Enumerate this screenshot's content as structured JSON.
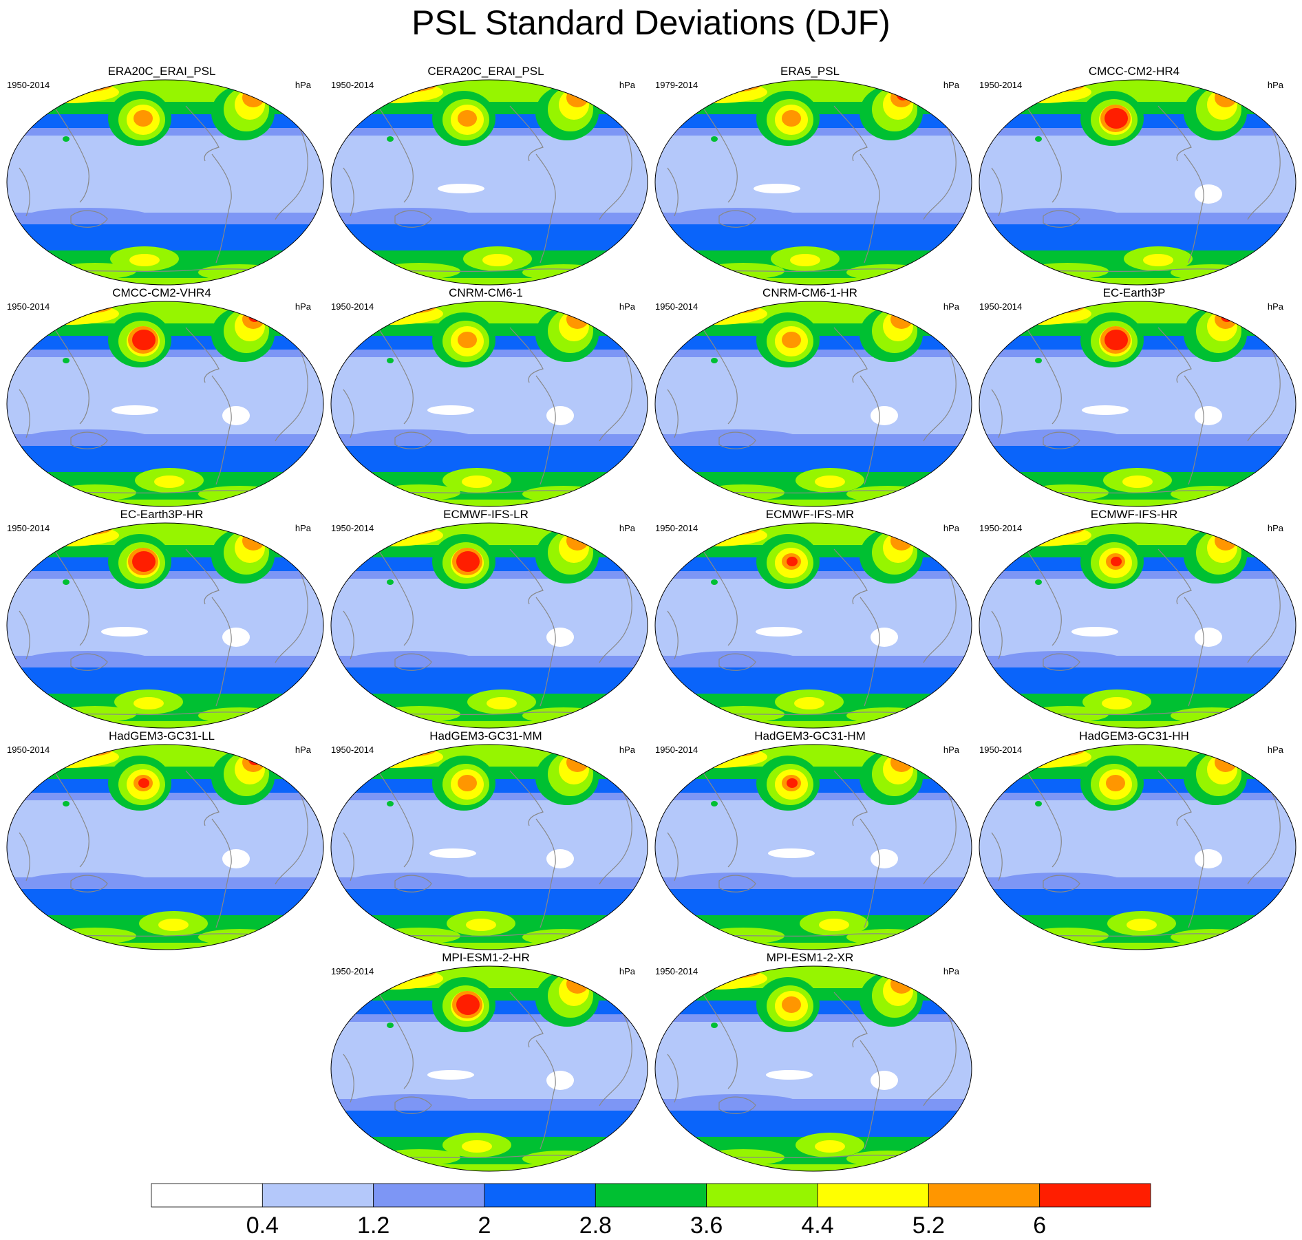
{
  "figure": {
    "title": "PSL Standard Deviations (DJF)"
  },
  "panels": [
    {
      "name": "ERA20C_ERAI_PSL",
      "period": "1950-2014",
      "units": "hPa"
    },
    {
      "name": "CERA20C_ERAI_PSL",
      "period": "1950-2014",
      "units": "hPa"
    },
    {
      "name": "ERA5_PSL",
      "period": "1979-2014",
      "units": "hPa"
    },
    {
      "name": "CMCC-CM2-HR4",
      "period": "1950-2014",
      "units": "hPa"
    },
    {
      "name": "CMCC-CM2-VHR4",
      "period": "1950-2014",
      "units": "hPa"
    },
    {
      "name": "CNRM-CM6-1",
      "period": "1950-2014",
      "units": "hPa"
    },
    {
      "name": "CNRM-CM6-1-HR",
      "period": "1950-2014",
      "units": "hPa"
    },
    {
      "name": "EC-Earth3P",
      "period": "1950-2014",
      "units": "hPa"
    },
    {
      "name": "EC-Earth3P-HR",
      "period": "1950-2014",
      "units": "hPa"
    },
    {
      "name": "ECMWF-IFS-LR",
      "period": "1950-2014",
      "units": "hPa"
    },
    {
      "name": "ECMWF-IFS-MR",
      "period": "1950-2014",
      "units": "hPa"
    },
    {
      "name": "ECMWF-IFS-HR",
      "period": "1950-2014",
      "units": "hPa"
    },
    {
      "name": "HadGEM3-GC31-LL",
      "period": "1950-2014",
      "units": "hPa"
    },
    {
      "name": "HadGEM3-GC31-MM",
      "period": "1950-2014",
      "units": "hPa"
    },
    {
      "name": "HadGEM3-GC31-HM",
      "period": "1950-2014",
      "units": "hPa"
    },
    {
      "name": "HadGEM3-GC31-HH",
      "period": "1950-2014",
      "units": "hPa"
    },
    {
      "name": "MPI-ESM1-2-HR",
      "period": "1950-2014",
      "units": "hPa"
    },
    {
      "name": "MPI-ESM1-2-XR",
      "period": "1950-2014",
      "units": "hPa"
    }
  ],
  "colorbar": {
    "levels": [
      "0.4",
      "1.2",
      "2",
      "2.8",
      "3.6",
      "4.4",
      "5.2",
      "6"
    ],
    "colors": [
      "#ffffff",
      "#b4c8fa",
      "#7d96f5",
      "#0a64fa",
      "#00c032",
      "#96f500",
      "#ffff00",
      "#ff9600",
      "#ff1e00"
    ]
  }
}
